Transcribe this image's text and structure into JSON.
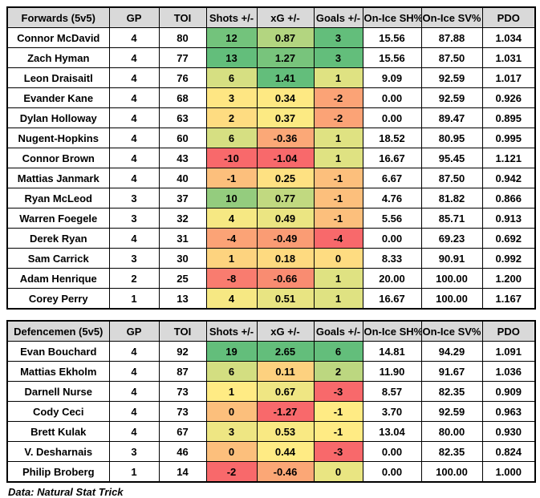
{
  "columns": {
    "gp": "GP",
    "toi": "TOI",
    "shots": "Shots +/-",
    "xg": "xG +/-",
    "goals": "Goals +/-",
    "sh": "On-Ice SH%",
    "sv": "On-Ice SV%",
    "pdo": "PDO"
  },
  "palette": {
    "header_bg": "#D9D9D9",
    "scale_min_red": "#F8696B",
    "scale_mid_yellow": "#FFEB84",
    "scale_max_green": "#63BE7B",
    "border": "#000000"
  },
  "tables": [
    {
      "title": "Forwards (5v5)",
      "rows": [
        {
          "name": "Connor McDavid",
          "gp": "4",
          "toi": "80",
          "shots": "12",
          "xg": "0.87",
          "goals": "3",
          "sh": "15.56",
          "sv": "87.88",
          "pdo": "1.034",
          "colors": {
            "shots": "#73C37C",
            "xg": "#B3D580",
            "goals": "#63BE7B"
          }
        },
        {
          "name": "Zach Hyman",
          "gp": "4",
          "toi": "77",
          "shots": "13",
          "xg": "1.27",
          "goals": "3",
          "sh": "15.56",
          "sv": "87.50",
          "pdo": "1.031",
          "colors": {
            "shots": "#63BE7B",
            "xg": "#78C47C",
            "goals": "#63BE7B"
          }
        },
        {
          "name": "Leon Draisaitl",
          "gp": "4",
          "toi": "76",
          "shots": "6",
          "xg": "1.41",
          "goals": "1",
          "sh": "9.09",
          "sv": "92.59",
          "pdo": "1.017",
          "colors": {
            "shots": "#D6DF82",
            "xg": "#63BE7B",
            "goals": "#DFE282"
          }
        },
        {
          "name": "Evander Kane",
          "gp": "4",
          "toi": "68",
          "shots": "3",
          "xg": "0.34",
          "goals": "-2",
          "sh": "0.00",
          "sv": "92.59",
          "pdo": "0.926",
          "colors": {
            "shots": "#FEE683",
            "xg": "#FEE983",
            "goals": "#FBA376"
          }
        },
        {
          "name": "Dylan Holloway",
          "gp": "4",
          "toi": "63",
          "shots": "2",
          "xg": "0.37",
          "goals": "-2",
          "sh": "0.00",
          "sv": "89.47",
          "pdo": "0.895",
          "colors": {
            "shots": "#FEDC81",
            "xg": "#FCEA83",
            "goals": "#FBA376"
          }
        },
        {
          "name": "Nugent-Hopkins",
          "gp": "4",
          "toi": "60",
          "shots": "6",
          "xg": "-0.36",
          "goals": "1",
          "sh": "18.52",
          "sv": "80.95",
          "pdo": "0.995",
          "colors": {
            "shots": "#D6DF82",
            "xg": "#FBA877",
            "goals": "#DFE282"
          }
        },
        {
          "name": "Connor Brown",
          "gp": "4",
          "toi": "43",
          "shots": "-10",
          "xg": "-1.04",
          "goals": "1",
          "sh": "16.67",
          "sv": "95.45",
          "pdo": "1.121",
          "colors": {
            "shots": "#F8696B",
            "xg": "#F8696B",
            "goals": "#DFE282"
          }
        },
        {
          "name": "Mattias Janmark",
          "gp": "4",
          "toi": "40",
          "shots": "-1",
          "xg": "0.25",
          "goals": "-1",
          "sh": "6.67",
          "sv": "87.50",
          "pdo": "0.942",
          "colors": {
            "shots": "#FCBF7C",
            "xg": "#FEE182",
            "goals": "#FCBF7C"
          }
        },
        {
          "name": "Ryan McLeod",
          "gp": "3",
          "toi": "37",
          "shots": "10",
          "xg": "0.77",
          "goals": "-1",
          "sh": "4.76",
          "sv": "81.82",
          "pdo": "0.866",
          "colors": {
            "shots": "#94CC7E",
            "xg": "#C1D980",
            "goals": "#FCBF7C"
          }
        },
        {
          "name": "Warren Foegele",
          "gp": "3",
          "toi": "32",
          "shots": "4",
          "xg": "0.49",
          "goals": "-1",
          "sh": "5.56",
          "sv": "85.71",
          "pdo": "0.913",
          "colors": {
            "shots": "#F6E883",
            "xg": "#EBE582",
            "goals": "#FCBF7C"
          }
        },
        {
          "name": "Derek Ryan",
          "gp": "4",
          "toi": "31",
          "shots": "-4",
          "xg": "-0.49",
          "goals": "-4",
          "sh": "0.00",
          "sv": "69.23",
          "pdo": "0.692",
          "colors": {
            "shots": "#FBA376",
            "xg": "#FA9C74",
            "goals": "#F8696B"
          }
        },
        {
          "name": "Sam Carrick",
          "gp": "3",
          "toi": "30",
          "shots": "1",
          "xg": "0.18",
          "goals": "0",
          "sh": "8.33",
          "sv": "90.91",
          "pdo": "0.992",
          "colors": {
            "shots": "#FDD37F",
            "xg": "#FEDA80",
            "goals": "#FEDC81"
          }
        },
        {
          "name": "Adam Henrique",
          "gp": "2",
          "toi": "25",
          "shots": "-8",
          "xg": "-0.66",
          "goals": "1",
          "sh": "20.00",
          "sv": "100.00",
          "pdo": "1.200",
          "colors": {
            "shots": "#F97C6F",
            "xg": "#F98C71",
            "goals": "#DFE282"
          }
        },
        {
          "name": "Corey Perry",
          "gp": "1",
          "toi": "13",
          "shots": "4",
          "xg": "0.51",
          "goals": "1",
          "sh": "16.67",
          "sv": "100.00",
          "pdo": "1.167",
          "colors": {
            "shots": "#F6E883",
            "xg": "#E8E482",
            "goals": "#DFE282"
          }
        }
      ]
    },
    {
      "title": "Defencemen (5v5)",
      "rows": [
        {
          "name": "Evan Bouchard",
          "gp": "4",
          "toi": "92",
          "shots": "19",
          "xg": "2.65",
          "goals": "6",
          "sh": "14.81",
          "sv": "94.29",
          "pdo": "1.091",
          "colors": {
            "shots": "#63BE7B",
            "xg": "#63BE7B",
            "goals": "#63BE7B"
          }
        },
        {
          "name": "Mattias Ekholm",
          "gp": "4",
          "toi": "87",
          "shots": "6",
          "xg": "0.11",
          "goals": "2",
          "sh": "11.90",
          "sv": "91.67",
          "pdo": "1.036",
          "colors": {
            "shots": "#D3DE81",
            "xg": "#FDD17F",
            "goals": "#BCD780"
          }
        },
        {
          "name": "Darnell Nurse",
          "gp": "4",
          "toi": "73",
          "shots": "1",
          "xg": "0.67",
          "goals": "-3",
          "sh": "8.57",
          "sv": "82.35",
          "pdo": "0.909",
          "colors": {
            "shots": "#FFEB84",
            "xg": "#EFE683",
            "goals": "#F8696B"
          }
        },
        {
          "name": "Cody Ceci",
          "gp": "4",
          "toi": "73",
          "shots": "0",
          "xg": "-1.27",
          "goals": "-1",
          "sh": "3.70",
          "sv": "92.59",
          "pdo": "0.963",
          "colors": {
            "shots": "#FCBF7C",
            "xg": "#F8696B",
            "goals": "#FFEB84"
          }
        },
        {
          "name": "Brett Kulak",
          "gp": "4",
          "toi": "67",
          "shots": "3",
          "xg": "0.53",
          "goals": "-1",
          "sh": "13.04",
          "sv": "80.00",
          "pdo": "0.930",
          "colors": {
            "shots": "#EEE683",
            "xg": "#F9E983",
            "goals": "#FFEB84"
          }
        },
        {
          "name": "V. Desharnais",
          "gp": "3",
          "toi": "46",
          "shots": "0",
          "xg": "0.44",
          "goals": "-3",
          "sh": "0.00",
          "sv": "82.35",
          "pdo": "0.824",
          "colors": {
            "shots": "#FCBF7C",
            "xg": "#FFEB84",
            "goals": "#F8696B"
          }
        },
        {
          "name": "Philip Broberg",
          "gp": "1",
          "toi": "14",
          "shots": "-2",
          "xg": "-0.46",
          "goals": "0",
          "sh": "0.00",
          "sv": "100.00",
          "pdo": "1.000",
          "colors": {
            "shots": "#F8696B",
            "xg": "#FBA776",
            "goals": "#E9E582"
          }
        }
      ]
    }
  ],
  "footer": {
    "source_label": "Data: Natural Stat Trick"
  }
}
